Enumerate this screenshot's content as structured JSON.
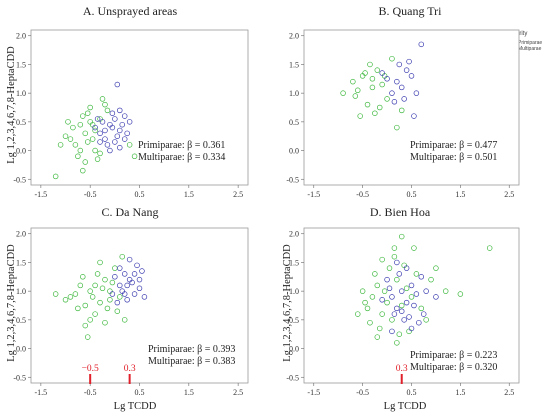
{
  "colors": {
    "primiparae": "#3b3bb0",
    "multiparae": "#3db83d",
    "annotation": "#e0202a"
  },
  "legend": {
    "title": "Parity",
    "items": [
      "Primiparae",
      "Multiparae"
    ],
    "placement": "right of panel B"
  },
  "chart_data": [
    {
      "type": "scatter",
      "title": "A. Unsprayed areas",
      "xlabel": "",
      "ylabel": "Lg 1,2,3,4,6,7,8-HeptaCDD",
      "xlim": [
        -1.7,
        2.7
      ],
      "ylim": [
        -0.6,
        2.1
      ],
      "xticks": [
        "-1.5",
        "-0.5",
        "0.5",
        "1.5",
        "2.5"
      ],
      "yticks": [
        "-0.5",
        "0.0",
        "0.5",
        "1.0",
        "1.5",
        "2.0"
      ],
      "series": [
        {
          "name": "Primiparae",
          "points": [
            [
              -0.3,
              0.3
            ],
            [
              -0.1,
              0.45
            ],
            [
              0.0,
              0.55
            ],
            [
              -0.2,
              0.2
            ],
            [
              0.1,
              0.35
            ],
            [
              -0.4,
              0.4
            ],
            [
              0.2,
              0.6
            ],
            [
              -0.15,
              0.1
            ],
            [
              0.05,
              0.25
            ],
            [
              -0.25,
              0.5
            ],
            [
              0.15,
              0.45
            ],
            [
              -0.05,
              0.65
            ],
            [
              0.0,
              0.15
            ],
            [
              -0.35,
              0.55
            ],
            [
              0.25,
              0.3
            ],
            [
              0.1,
              0.7
            ],
            [
              -0.2,
              0.35
            ],
            [
              0.3,
              0.5
            ],
            [
              -0.1,
              0.0
            ],
            [
              0.05,
              1.15
            ],
            [
              0.2,
              0.2
            ],
            [
              -0.3,
              0.15
            ],
            [
              0.1,
              0.05
            ],
            [
              -0.05,
              0.4
            ]
          ]
        },
        {
          "name": "Multiparae",
          "points": [
            [
              -0.6,
              0.3
            ],
            [
              -0.8,
              0.1
            ],
            [
              -0.5,
              0.5
            ],
            [
              -0.9,
              0.2
            ],
            [
              -0.7,
              0.45
            ],
            [
              -0.4,
              0.0
            ],
            [
              -1.0,
              0.25
            ],
            [
              -0.55,
              0.65
            ],
            [
              -0.3,
              -0.05
            ],
            [
              -0.75,
              -0.1
            ],
            [
              -0.45,
              0.2
            ],
            [
              -0.65,
              0.6
            ],
            [
              -0.2,
              0.8
            ],
            [
              -0.85,
              0.4
            ],
            [
              -0.6,
              -0.2
            ],
            [
              -1.1,
              0.1
            ],
            [
              -0.4,
              0.35
            ],
            [
              -0.5,
              0.75
            ],
            [
              -0.3,
              0.55
            ],
            [
              -0.7,
              0.0
            ],
            [
              -0.55,
              0.15
            ],
            [
              -0.35,
              -0.15
            ],
            [
              -0.95,
              0.5
            ],
            [
              -0.65,
              -0.35
            ],
            [
              -1.2,
              -0.45
            ],
            [
              -0.25,
              0.9
            ],
            [
              0.3,
              0.1
            ],
            [
              0.4,
              -0.1
            ],
            [
              -0.15,
              0.7
            ],
            [
              -0.45,
              0.45
            ]
          ]
        }
      ],
      "annotations": [
        "Primiparae: β = 0.361",
        "Multiparae: β = 0.334"
      ]
    },
    {
      "type": "scatter",
      "title": "B. Quang Tri",
      "xlabel": "",
      "ylabel": "",
      "xlim": [
        -1.7,
        2.7
      ],
      "ylim": [
        -0.6,
        2.1
      ],
      "xticks": [
        "-1.5",
        "-0.5",
        "0.5",
        "1.5",
        "2.5"
      ],
      "yticks": [
        "-0.5",
        "0.0",
        "0.5",
        "1.0",
        "1.5",
        "2.0"
      ],
      "series": [
        {
          "name": "Primiparae",
          "points": [
            [
              0.2,
              1.2
            ],
            [
              0.4,
              1.4
            ],
            [
              0.1,
              1.0
            ],
            [
              0.3,
              1.1
            ],
            [
              0.5,
              1.3
            ],
            [
              0.0,
              1.25
            ],
            [
              0.25,
              1.5
            ],
            [
              0.6,
              1.0
            ],
            [
              0.7,
              1.85
            ],
            [
              0.15,
              0.85
            ],
            [
              0.35,
              0.9
            ],
            [
              0.45,
              1.55
            ],
            [
              -0.1,
              1.35
            ],
            [
              0.55,
              0.6
            ]
          ]
        },
        {
          "name": "Multiparae",
          "points": [
            [
              -0.5,
              1.3
            ],
            [
              -0.3,
              1.1
            ],
            [
              -0.6,
              1.05
            ],
            [
              -0.2,
              1.4
            ],
            [
              -0.4,
              0.8
            ],
            [
              0.0,
              0.9
            ],
            [
              -0.7,
              1.2
            ],
            [
              -0.1,
              1.15
            ],
            [
              -0.35,
              1.5
            ],
            [
              -0.55,
              0.6
            ],
            [
              -0.9,
              1.0
            ],
            [
              -0.25,
              0.65
            ],
            [
              0.1,
              1.6
            ],
            [
              -0.45,
              1.35
            ],
            [
              -0.15,
              0.75
            ],
            [
              -0.65,
              0.95
            ],
            [
              0.2,
              0.4
            ],
            [
              -0.3,
              1.25
            ],
            [
              -0.05,
              1.3
            ],
            [
              0.3,
              0.7
            ]
          ]
        }
      ],
      "annotations": [
        "Primiparae: β = 0.477",
        "Multiparae: β = 0.501"
      ]
    },
    {
      "type": "scatter",
      "title": "C. Da Nang",
      "xlabel": "Lg TCDD",
      "ylabel": "Lg 1,2,3,4,6,7,8-HeptaCDD",
      "xlim": [
        -1.7,
        2.7
      ],
      "ylim": [
        -0.6,
        2.1
      ],
      "xticks": [
        "-1.5",
        "-0.5",
        "0.5",
        "1.5",
        "2.5"
      ],
      "yticks": [
        "-0.5",
        "0.0",
        "0.5",
        "1.0",
        "1.5",
        "2.0"
      ],
      "series": [
        {
          "name": "Primiparae",
          "points": [
            [
              0.1,
              1.1
            ],
            [
              0.3,
              1.2
            ],
            [
              0.2,
              0.95
            ],
            [
              0.4,
              1.3
            ],
            [
              0.5,
              1.05
            ],
            [
              0.0,
              1.25
            ],
            [
              0.25,
              0.85
            ],
            [
              0.45,
              1.45
            ],
            [
              0.15,
              1.0
            ],
            [
              0.35,
              1.15
            ],
            [
              0.55,
              1.35
            ],
            [
              0.6,
              0.9
            ],
            [
              -0.05,
              0.95
            ],
            [
              0.3,
              1.55
            ],
            [
              0.2,
              1.3
            ],
            [
              0.4,
              0.95
            ],
            [
              0.1,
              1.4
            ],
            [
              0.5,
              1.2
            ],
            [
              0.05,
              0.8
            ],
            [
              0.25,
              1.1
            ]
          ]
        },
        {
          "name": "Multiparae",
          "points": [
            [
              -0.5,
              1.0
            ],
            [
              -0.3,
              0.8
            ],
            [
              -0.7,
              1.1
            ],
            [
              -0.2,
              1.2
            ],
            [
              -0.4,
              0.6
            ],
            [
              -0.9,
              0.9
            ],
            [
              -0.1,
              1.0
            ],
            [
              -0.6,
              0.75
            ],
            [
              -0.35,
              1.3
            ],
            [
              -0.8,
              0.95
            ],
            [
              -0.15,
              0.7
            ],
            [
              -0.5,
              0.5
            ],
            [
              -1.0,
              0.85
            ],
            [
              -0.25,
              1.05
            ],
            [
              -0.65,
              1.25
            ],
            [
              -0.45,
              0.9
            ],
            [
              0.05,
              0.65
            ],
            [
              -0.2,
              0.45
            ],
            [
              -0.55,
              0.2
            ],
            [
              -0.3,
              1.5
            ],
            [
              -0.75,
              0.7
            ],
            [
              0.0,
              1.4
            ],
            [
              -0.1,
              0.85
            ],
            [
              -0.4,
              1.1
            ],
            [
              -1.2,
              0.95
            ],
            [
              -0.6,
              0.4
            ],
            [
              0.15,
              1.6
            ],
            [
              0.2,
              0.5
            ],
            [
              0.1,
              0.9
            ],
            [
              -0.05,
              1.15
            ]
          ]
        }
      ],
      "annotations": [
        "Primiparae: β = 0.393",
        "Multiparae: β = 0.383"
      ],
      "markers": [
        {
          "x": -0.5,
          "label": "−0.5"
        },
        {
          "x": 0.3,
          "label": "0.3"
        }
      ]
    },
    {
      "type": "scatter",
      "title": "D. Bien Hoa",
      "xlabel": "Lg TCDD",
      "ylabel": "Lg 1,2,3,4,6,7,8-HeptaCDD",
      "xlim": [
        -1.7,
        2.7
      ],
      "ylim": [
        -0.6,
        2.1
      ],
      "xticks": [
        "-1.5",
        "-0.5",
        "0.5",
        "1.5",
        "2.5"
      ],
      "yticks": [
        "-0.5",
        "0.0",
        "0.5",
        "1.0",
        "1.5",
        "2.0"
      ],
      "series": [
        {
          "name": "Primiparae",
          "points": [
            [
              0.1,
              0.9
            ],
            [
              0.3,
              1.0
            ],
            [
              0.2,
              0.7
            ],
            [
              0.5,
              1.1
            ],
            [
              0.4,
              0.8
            ],
            [
              0.0,
              1.2
            ],
            [
              0.6,
              0.95
            ],
            [
              0.25,
              1.3
            ],
            [
              0.15,
              0.6
            ],
            [
              0.45,
              0.55
            ],
            [
              0.7,
              1.25
            ],
            [
              0.35,
              0.5
            ],
            [
              -0.1,
              0.85
            ],
            [
              0.55,
              0.75
            ],
            [
              0.8,
              1.0
            ],
            [
              0.2,
              1.5
            ],
            [
              0.3,
              0.65
            ],
            [
              0.65,
              0.45
            ],
            [
              1.0,
              0.9
            ],
            [
              0.05,
              1.05
            ],
            [
              0.4,
              1.4
            ],
            [
              0.75,
              0.6
            ],
            [
              0.1,
              0.3
            ],
            [
              0.5,
              0.35
            ]
          ]
        },
        {
          "name": "Multiparae",
          "points": [
            [
              -0.3,
              0.9
            ],
            [
              -0.2,
              1.1
            ],
            [
              -0.4,
              0.7
            ],
            [
              0.0,
              0.8
            ],
            [
              -0.1,
              0.6
            ],
            [
              0.2,
              1.2
            ],
            [
              -0.5,
              1.0
            ],
            [
              0.1,
              0.5
            ],
            [
              -0.25,
              1.3
            ],
            [
              0.3,
              0.75
            ],
            [
              -0.35,
              0.45
            ],
            [
              0.05,
              1.4
            ],
            [
              -0.15,
              0.35
            ],
            [
              0.4,
              1.05
            ],
            [
              -0.45,
              0.8
            ],
            [
              0.15,
              1.6
            ],
            [
              0.25,
              0.25
            ],
            [
              -0.05,
              1.0
            ],
            [
              0.5,
              0.9
            ],
            [
              -0.6,
              0.6
            ],
            [
              0.35,
              1.45
            ],
            [
              0.6,
              1.3
            ],
            [
              0.3,
              1.95
            ],
            [
              0.15,
              1.75
            ],
            [
              0.9,
              1.2
            ],
            [
              1.2,
              1.0
            ],
            [
              1.5,
              0.95
            ],
            [
              2.1,
              1.75
            ],
            [
              0.45,
              0.3
            ],
            [
              -0.2,
              0.2
            ],
            [
              0.7,
              0.7
            ],
            [
              1.0,
              1.4
            ],
            [
              0.8,
              0.5
            ],
            [
              0.2,
              0.1
            ],
            [
              -0.1,
              1.55
            ],
            [
              0.55,
              1.75
            ]
          ]
        }
      ],
      "annotations": [
        "Primiparae: β = 0.223",
        "Multiparae: β = 0.320"
      ],
      "markers": [
        {
          "x": 0.3,
          "label": "0.3"
        }
      ]
    }
  ]
}
